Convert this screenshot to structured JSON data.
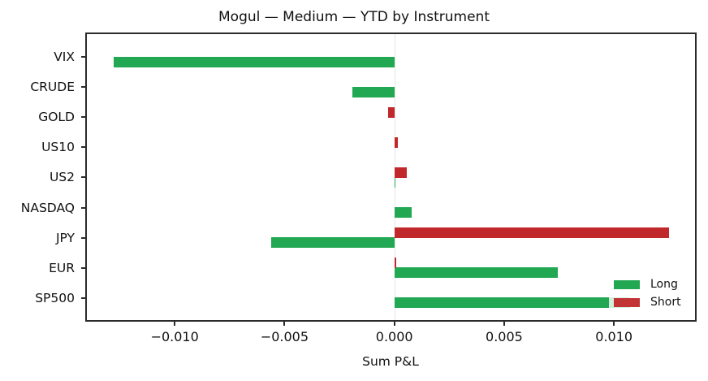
{
  "title": "Mogul — Medium — YTD by Instrument",
  "chart_data": {
    "type": "bar",
    "orientation": "horizontal",
    "title": "Mogul — Medium — YTD by Instrument",
    "xlabel": "Sum P&L",
    "ylabel": "",
    "xlim": [
      -0.0141,
      0.0137
    ],
    "xticks": [
      -0.01,
      -0.005,
      0.0,
      0.005,
      0.01
    ],
    "xtick_labels": [
      "−0.010",
      "−0.005",
      "0.000",
      "0.005",
      "0.010"
    ],
    "categories": [
      "VIX",
      "CRUDE",
      "GOLD",
      "US10",
      "US2",
      "NASDAQ",
      "JPY",
      "EUR",
      "SP500"
    ],
    "series": [
      {
        "name": "Long",
        "color": "#22a853",
        "values": [
          -0.01278,
          -0.00191,
          0.0,
          0.0,
          1e-05,
          0.00079,
          -0.00561,
          0.00744,
          0.01073
        ]
      },
      {
        "name": "Short",
        "color": "#c0282b",
        "values": [
          0.0,
          0.0,
          -0.00028,
          0.00015,
          0.00057,
          0.0,
          0.0125,
          9e-05,
          0.0
        ]
      }
    ],
    "grid": false,
    "legend": {
      "position": "lower right",
      "entries": [
        "Long",
        "Short"
      ]
    }
  },
  "legend": {
    "long": "Long",
    "short": "Short"
  },
  "axis": {
    "xlabel": "Sum P&L"
  }
}
